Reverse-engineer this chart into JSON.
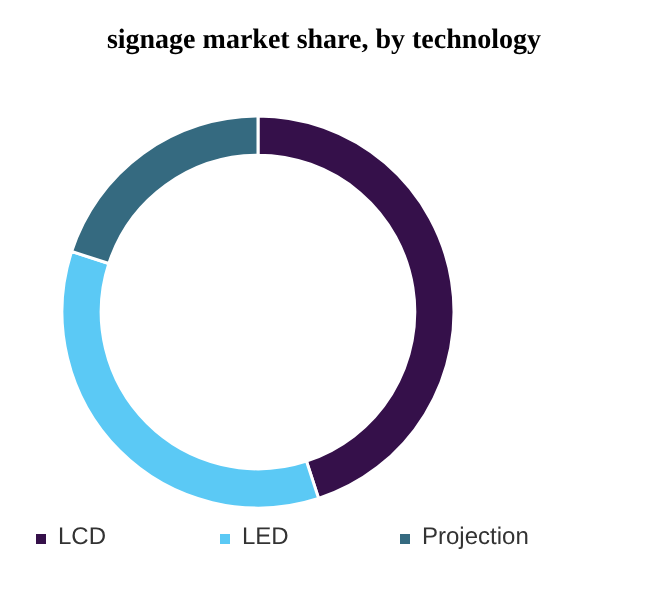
{
  "chart_data": {
    "type": "donut",
    "title": "signage market share, by technology",
    "categories": [
      "LCD",
      "LED",
      "Projection"
    ],
    "values": [
      45,
      35,
      20
    ],
    "colors": [
      "#35104a",
      "#5bc9f5",
      "#356a80"
    ],
    "legend": "bottom"
  }
}
